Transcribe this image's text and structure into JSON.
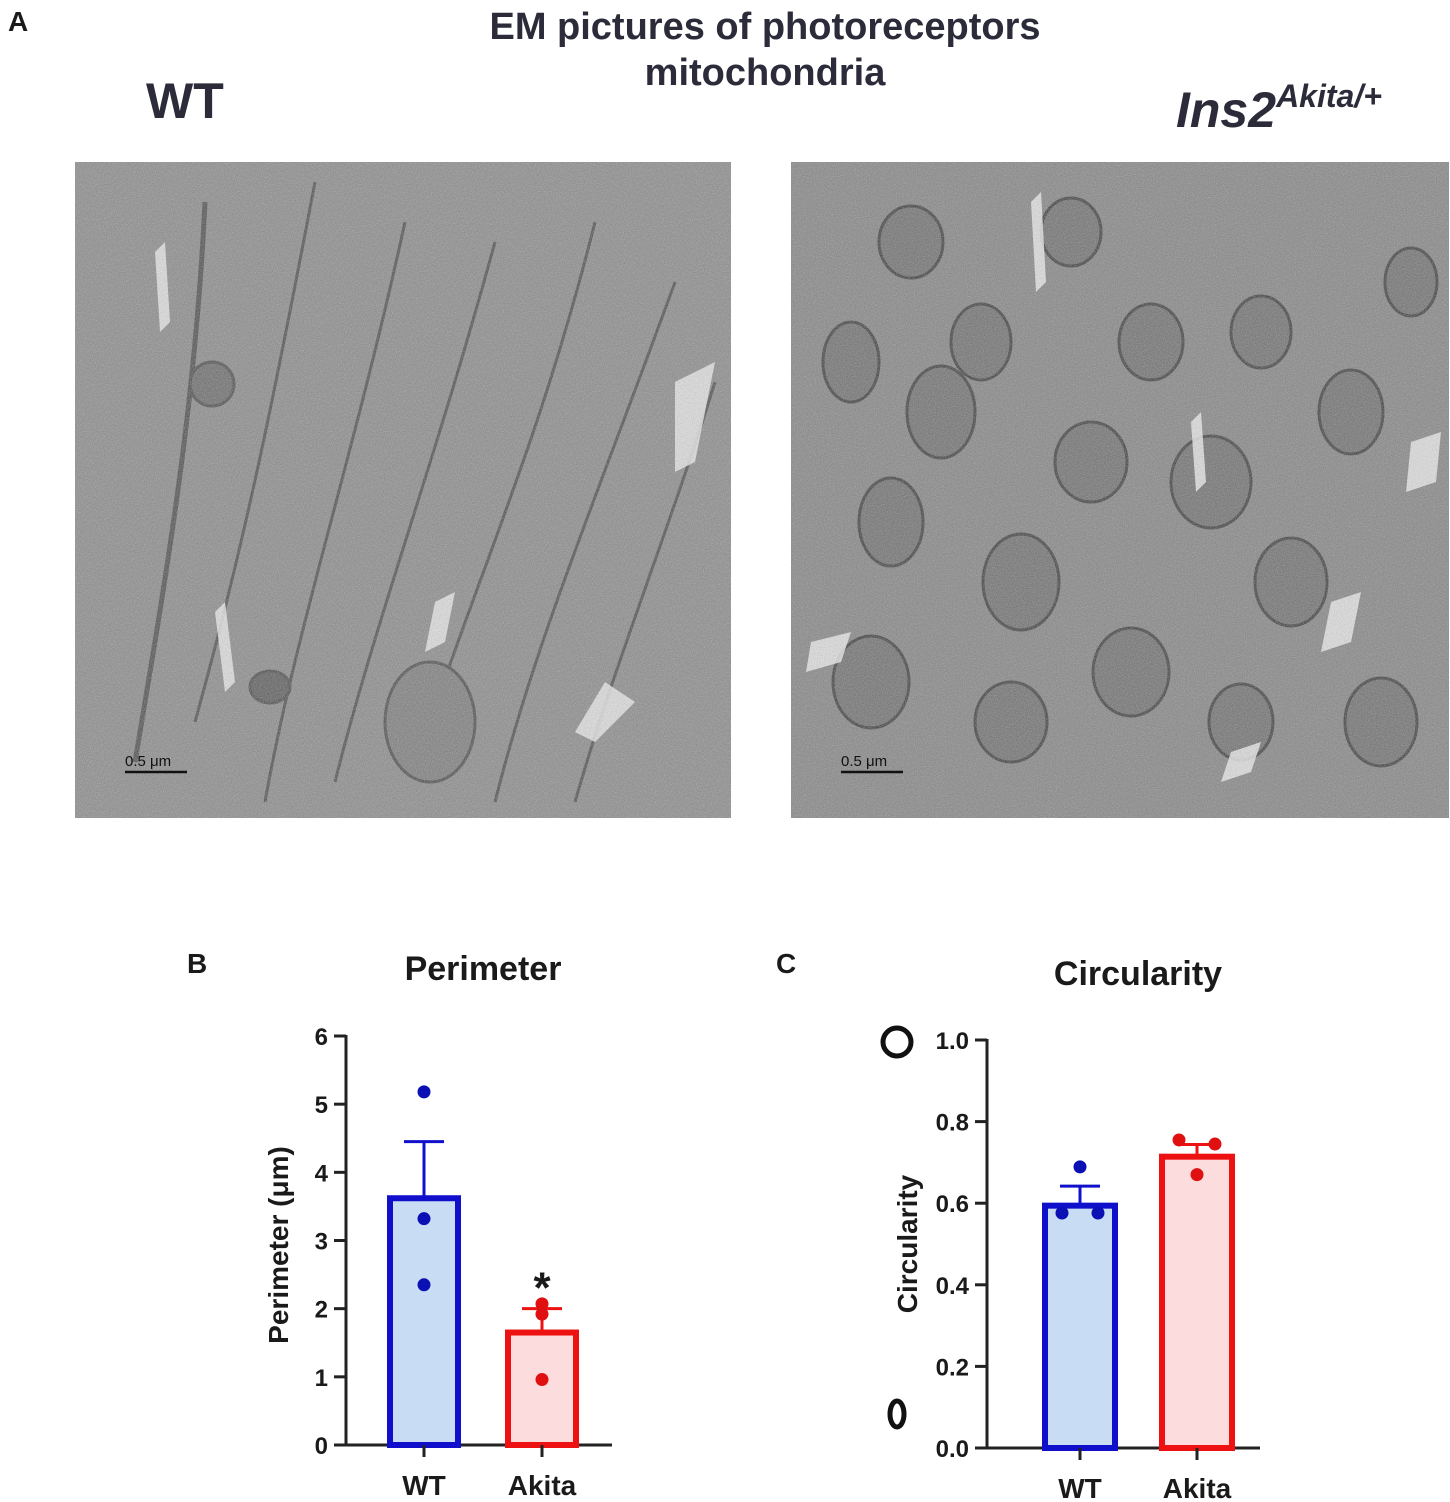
{
  "panels": {
    "a": {
      "letter": "A",
      "title_line1": "EM pictures of photoreceptors",
      "title_line2": "mitochondria",
      "left_label": "WT",
      "right_label_main": "Ins2",
      "right_label_sup": "Akita/+",
      "left_scale": "0.5 μm",
      "right_scale": "0.5 μm"
    },
    "b": {
      "letter": "B"
    },
    "c": {
      "letter": "C"
    }
  },
  "colors": {
    "wt_stroke": "#1010cc",
    "wt_fill": "#c8dcf4",
    "wt_dot": "#0a10b4",
    "akita_stroke": "#ee1111",
    "akita_fill": "#fcdcdc",
    "akita_dot": "#e01010"
  },
  "chart_data": [
    {
      "type": "bar",
      "title": "Perimeter",
      "ylabel": "Perimeter (μm)",
      "categories": [
        "WT",
        "Akita"
      ],
      "values": [
        3.62,
        1.65
      ],
      "errors": [
        0.83,
        0.35
      ],
      "points": [
        [
          5.18,
          3.32,
          2.35
        ],
        [
          2.07,
          1.92,
          0.96
        ]
      ],
      "ylim": [
        0,
        6
      ],
      "yticks": [
        "0",
        "1",
        "2",
        "3",
        "4",
        "5",
        "6"
      ],
      "annotation": "*",
      "grid": false
    },
    {
      "type": "bar",
      "title": "Circularity",
      "ylabel": "Circularity",
      "categories": [
        "WT",
        "Akita"
      ],
      "values": [
        0.594,
        0.714
      ],
      "errors": [
        0.048,
        0.03
      ],
      "points": [
        [
          0.689,
          0.576,
          0.576
        ],
        [
          0.755,
          0.745,
          0.67
        ]
      ],
      "ylim": [
        0,
        1
      ],
      "yticks": [
        "0.0",
        "0.2",
        "0.4",
        "0.6",
        "0.8",
        "1.0"
      ],
      "grid": false
    }
  ]
}
